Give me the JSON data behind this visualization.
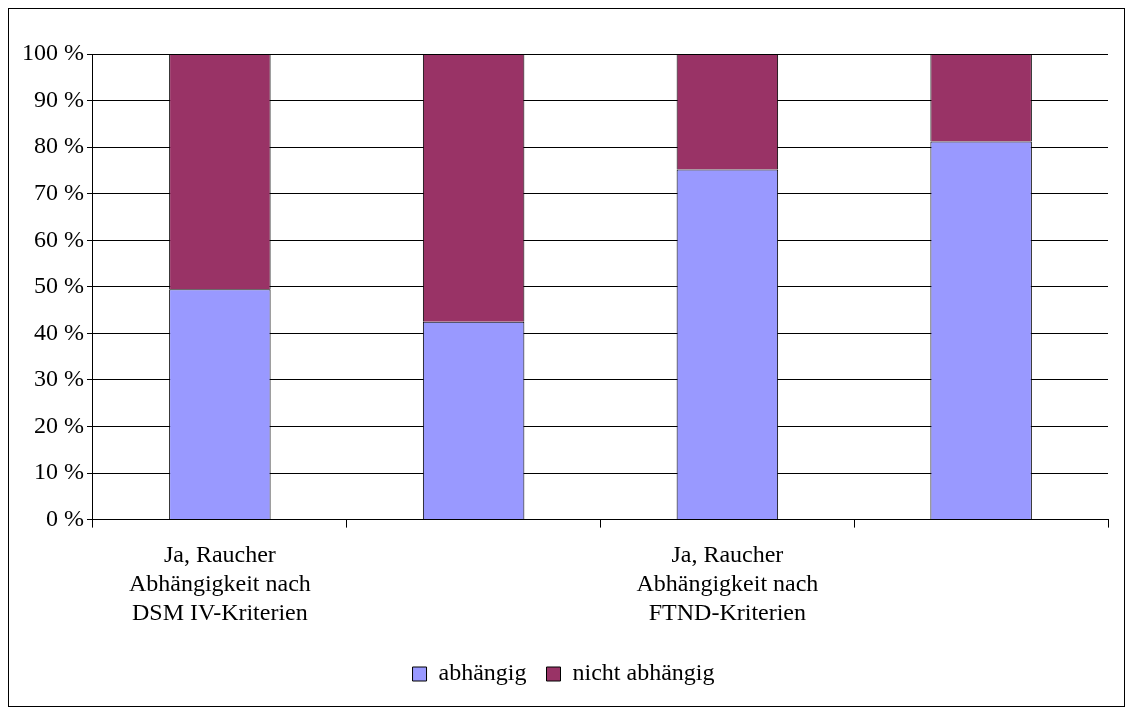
{
  "chart_data": {
    "type": "bar",
    "stacked": true,
    "categories": [
      "Ja, Raucher\nAbhängigkeit nach\nDSM IV-Kriterien",
      null,
      "Ja, Raucher\nAbhängigkeit nach\nFTND-Kriterien",
      null
    ],
    "series": [
      {
        "name": "abhängig",
        "color": "#9999ff",
        "values": [
          49.5,
          42.5,
          75.2,
          81.2
        ]
      },
      {
        "name": "nicht abhängig",
        "color": "#993366",
        "values": [
          50.5,
          57.5,
          24.8,
          18.8
        ]
      }
    ],
    "ylim": [
      0,
      100
    ],
    "yticks": [
      {
        "value": 0,
        "label": "0 %"
      },
      {
        "value": 10,
        "label": "10 %"
      },
      {
        "value": 20,
        "label": "20 %"
      },
      {
        "value": 30,
        "label": "30 %"
      },
      {
        "value": 40,
        "label": "40 %"
      },
      {
        "value": 50,
        "label": "50 %"
      },
      {
        "value": 60,
        "label": "60 %"
      },
      {
        "value": 70,
        "label": "70 %"
      },
      {
        "value": 80,
        "label": "80 %"
      },
      {
        "value": 90,
        "label": "90 %"
      },
      {
        "value": 100,
        "label": "100 %"
      }
    ],
    "grid": "y",
    "legend": "bottom"
  }
}
